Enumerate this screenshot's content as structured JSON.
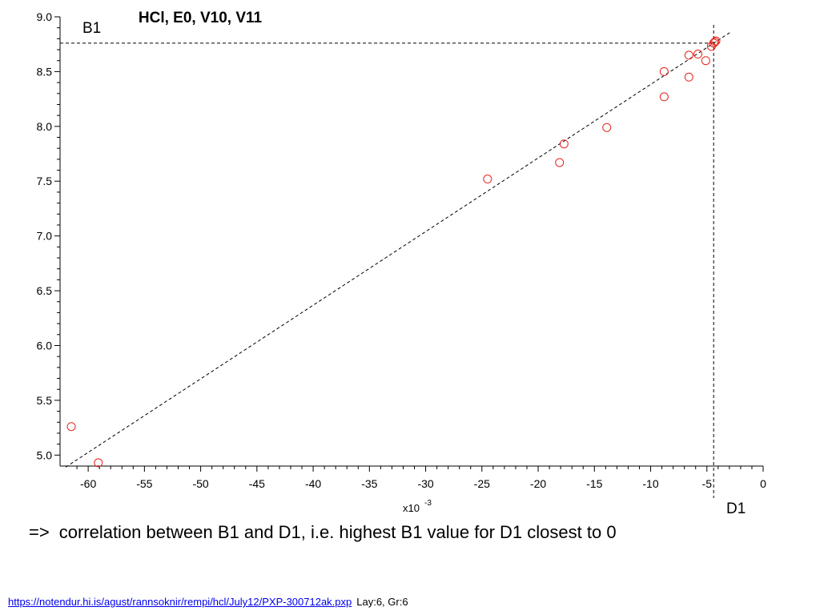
{
  "chart_data": {
    "type": "scatter",
    "title": "HCl, E0, V10, V11",
    "xlabel": "D1",
    "ylabel": "B1",
    "x_multiplier_label": "x10",
    "x_multiplier_exp": "-3",
    "xlim": [
      -62.5,
      0
    ],
    "ylim": [
      4.9,
      9.0
    ],
    "xticks": [
      -60,
      -55,
      -50,
      -45,
      -40,
      -35,
      -30,
      -25,
      -20,
      -15,
      -10,
      -5,
      0
    ],
    "xtick_labels": [
      "-60",
      "-55",
      "-50",
      "-45",
      "-40",
      "-35",
      "-30",
      "-25",
      "-20",
      "-15",
      "-10",
      "-5",
      "0"
    ],
    "yticks": [
      5.0,
      5.5,
      6.0,
      6.5,
      7.0,
      7.5,
      8.0,
      8.5,
      9.0
    ],
    "ytick_labels": [
      "5.0",
      "5.5",
      "6.0",
      "6.5",
      "7.0",
      "7.5",
      "8.0",
      "8.5",
      "9.0"
    ],
    "grid": false,
    "marker": "open-circle",
    "marker_color": "#e8231c",
    "points": [
      {
        "x": -61.5,
        "y": 5.26
      },
      {
        "x": -59.1,
        "y": 4.93
      },
      {
        "x": -24.5,
        "y": 7.52
      },
      {
        "x": -18.1,
        "y": 7.67
      },
      {
        "x": -17.7,
        "y": 7.84
      },
      {
        "x": -13.9,
        "y": 7.99
      },
      {
        "x": -8.8,
        "y": 8.5
      },
      {
        "x": -8.8,
        "y": 8.27
      },
      {
        "x": -6.6,
        "y": 8.65
      },
      {
        "x": -6.6,
        "y": 8.45
      },
      {
        "x": -5.8,
        "y": 8.66
      },
      {
        "x": -5.1,
        "y": 8.6
      },
      {
        "x": -4.6,
        "y": 8.73
      },
      {
        "x": -4.4,
        "y": 8.76
      },
      {
        "x": -4.3,
        "y": 8.77
      },
      {
        "x": -4.2,
        "y": 8.78
      }
    ],
    "fit_line": {
      "x1": -62.5,
      "y1": 4.89,
      "x2": -2.9,
      "y2": 8.86
    },
    "reference_lines": {
      "x": -4.4,
      "y": 8.76
    }
  },
  "caption": {
    "arrow": "=>",
    "text": "correlation between B1 and D1, i.e. highest B1 value for D1 closest to 0"
  },
  "footer": {
    "link_text": "https://notendur.hi.is/agust/rannsoknir/rempi/hcl/July12/PXP-300712ak.pxp",
    "meta": "Lay:6, Gr:6"
  }
}
